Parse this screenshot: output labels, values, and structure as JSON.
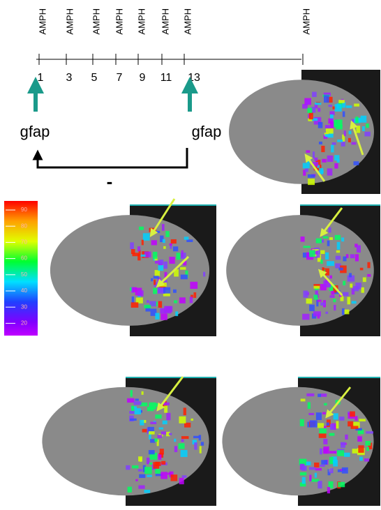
{
  "timeline": {
    "events": [
      "AMPH",
      "AMPH",
      "AMPH",
      "AMPH",
      "AMPH",
      "AMPH",
      "AMPH",
      "AMPH"
    ],
    "days": [
      1,
      3,
      5,
      7,
      9,
      11,
      13
    ]
  },
  "markers": [
    "gfap",
    "gfap"
  ],
  "comparison": "-",
  "colorbar": {
    "ticks": [
      90,
      80,
      70,
      60,
      50,
      40,
      30,
      20
    ]
  }
}
